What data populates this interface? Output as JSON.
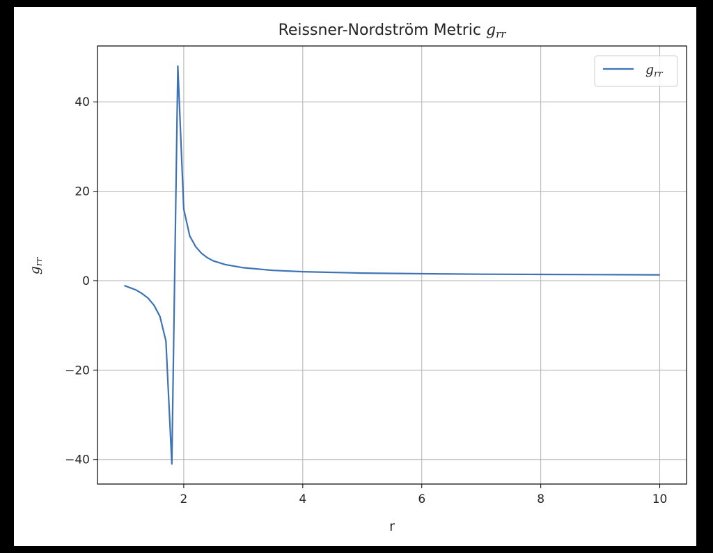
{
  "chart_data": {
    "type": "line",
    "title": "Reissner-Nordström Metric ",
    "title_math": "g",
    "title_math_sub": "rr",
    "xlabel": "r",
    "ylabel_math": "g",
    "ylabel_math_sub": "rr",
    "xlim": [
      0.55,
      10.45
    ],
    "ylim": [
      -45.5,
      52.5
    ],
    "xticks": [
      2,
      4,
      6,
      8,
      10
    ],
    "xtick_labels": [
      "2",
      "4",
      "6",
      "8",
      "10"
    ],
    "yticks": [
      -40,
      -20,
      0,
      20,
      40
    ],
    "ytick_labels": [
      "−40",
      "−20",
      "0",
      "20",
      "40"
    ],
    "grid": true,
    "legend_position": "top-right",
    "colors": {
      "series": "#3d72b4",
      "grid": "#b0b0b0",
      "axes": "#000000",
      "figure_bg": "#000000"
    },
    "series": [
      {
        "name_math": "g",
        "name_math_sub": "rr",
        "x": [
          1.0,
          1.1,
          1.2,
          1.3,
          1.4,
          1.5,
          1.6,
          1.7,
          1.8,
          1.9,
          2.0,
          2.1,
          2.2,
          2.3,
          2.4,
          2.5,
          2.7,
          3.0,
          3.5,
          4.0,
          5.0,
          6.0,
          7.0,
          8.0,
          9.0,
          10.0
        ],
        "y": [
          -1.1,
          -1.6,
          -2.1,
          -2.9,
          -3.9,
          -5.5,
          -8.0,
          -13.5,
          -41.0,
          48.0,
          16.0,
          10.0,
          7.6,
          6.1,
          5.1,
          4.4,
          3.6,
          2.9,
          2.3,
          2.0,
          1.7,
          1.55,
          1.45,
          1.39,
          1.35,
          1.3
        ]
      }
    ]
  }
}
